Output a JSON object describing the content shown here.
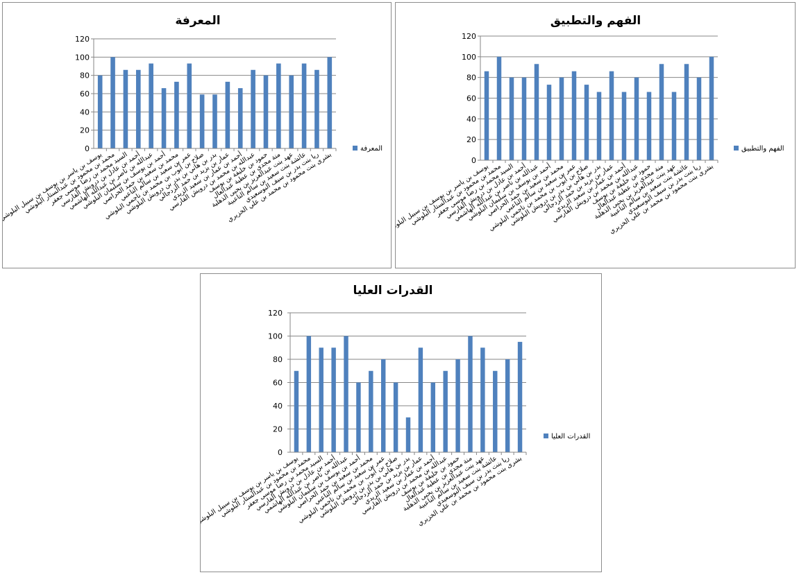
{
  "categories": [
    "يوسف بن ياسر بن يوسف بن سبيل البلوشي",
    "محمد بن محمود بن عبدالستار البلوشي",
    "السيد محمد بن رضا موسى جعفر",
    "أحمد بن عادل بن درويش الفارسي",
    "عبدالله بن ناصر بن عبدالله الهاشمي",
    "أحمد بن يوسف بن سليمان البلوشي",
    "محمد بن سعيد بن حمد الحراصي",
    "عمر بن سعيد بن سالم الناعبي",
    "صلاح بن أيوب بن محمد بن ناجمي البلوشي",
    "بدر بن هاني بن بدر بن درويش البلوشي",
    "عمار بن يزيد بن حمد الزدجالي",
    "أحمد بن عمار بن سعيد الزيدي",
    "عبدالله بن محمد بن درويش الفارسي",
    "حمود بن خليفة بن يوسف",
    "منة مجدي بن عطية عبدالعال",
    "عهد بنت عبدالعزيز بن يحيى الذهلية",
    "عائشة بنت سعيد بن سالم الناعبية",
    "ريا بنت بدر بن سيف البوسعيدي",
    "بشرى بنت محمود بن محمد بن علي الخزيري"
  ],
  "charts": [
    {
      "id": "knowledge",
      "title": "المعرفة",
      "legend": "المعرفة",
      "color": "#4f81bd",
      "ylim": [
        0,
        120
      ],
      "yticks": [
        "0",
        "20",
        "40",
        "60",
        "80",
        "100",
        "120"
      ],
      "values": [
        80,
        100,
        86,
        86,
        93,
        66,
        73,
        93,
        59,
        59,
        73,
        66,
        86,
        80,
        93,
        80,
        93,
        86,
        100
      ]
    },
    {
      "id": "understanding",
      "title": "الفهم والتطبيق",
      "legend": "الفهم والتطبيق",
      "color": "#4f81bd",
      "ylim": [
        0,
        120
      ],
      "yticks": [
        "0",
        "20",
        "40",
        "60",
        "80",
        "100",
        "120"
      ],
      "values": [
        86,
        100,
        80,
        80,
        93,
        73,
        80,
        86,
        73,
        66,
        86,
        66,
        80,
        66,
        93,
        66,
        93,
        80,
        100
      ]
    },
    {
      "id": "higher",
      "title": "القدرات العليا",
      "legend": "القدرات العليا",
      "color": "#4f81bd",
      "ylim": [
        0,
        120
      ],
      "yticks": [
        "0",
        "20",
        "40",
        "60",
        "80",
        "100",
        "120"
      ],
      "values": [
        70,
        100,
        90,
        90,
        100,
        60,
        70,
        80,
        60,
        30,
        90,
        60,
        70,
        80,
        100,
        90,
        70,
        80,
        95
      ]
    }
  ],
  "chart_data": [
    {
      "type": "bar",
      "title": "المعرفة",
      "xlabel": "",
      "ylabel": "",
      "ylim": [
        0,
        120
      ],
      "legend": "right",
      "grid": true,
      "series": [
        {
          "name": "المعرفة",
          "values": [
            80,
            100,
            86,
            86,
            93,
            66,
            73,
            93,
            59,
            59,
            73,
            66,
            86,
            80,
            93,
            80,
            93,
            86,
            100
          ]
        }
      ]
    },
    {
      "type": "bar",
      "title": "الفهم والتطبيق",
      "xlabel": "",
      "ylabel": "",
      "ylim": [
        0,
        120
      ],
      "legend": "right",
      "grid": true,
      "series": [
        {
          "name": "الفهم والتطبيق",
          "values": [
            86,
            100,
            80,
            80,
            93,
            73,
            80,
            86,
            73,
            66,
            86,
            66,
            80,
            66,
            93,
            66,
            93,
            80,
            100
          ]
        }
      ]
    },
    {
      "type": "bar",
      "title": "القدرات العليا",
      "xlabel": "",
      "ylabel": "",
      "ylim": [
        0,
        120
      ],
      "legend": "right",
      "grid": true,
      "series": [
        {
          "name": "القدرات العليا",
          "values": [
            70,
            100,
            90,
            90,
            100,
            60,
            70,
            80,
            60,
            30,
            90,
            60,
            70,
            80,
            100,
            90,
            70,
            80,
            95
          ]
        }
      ]
    }
  ]
}
